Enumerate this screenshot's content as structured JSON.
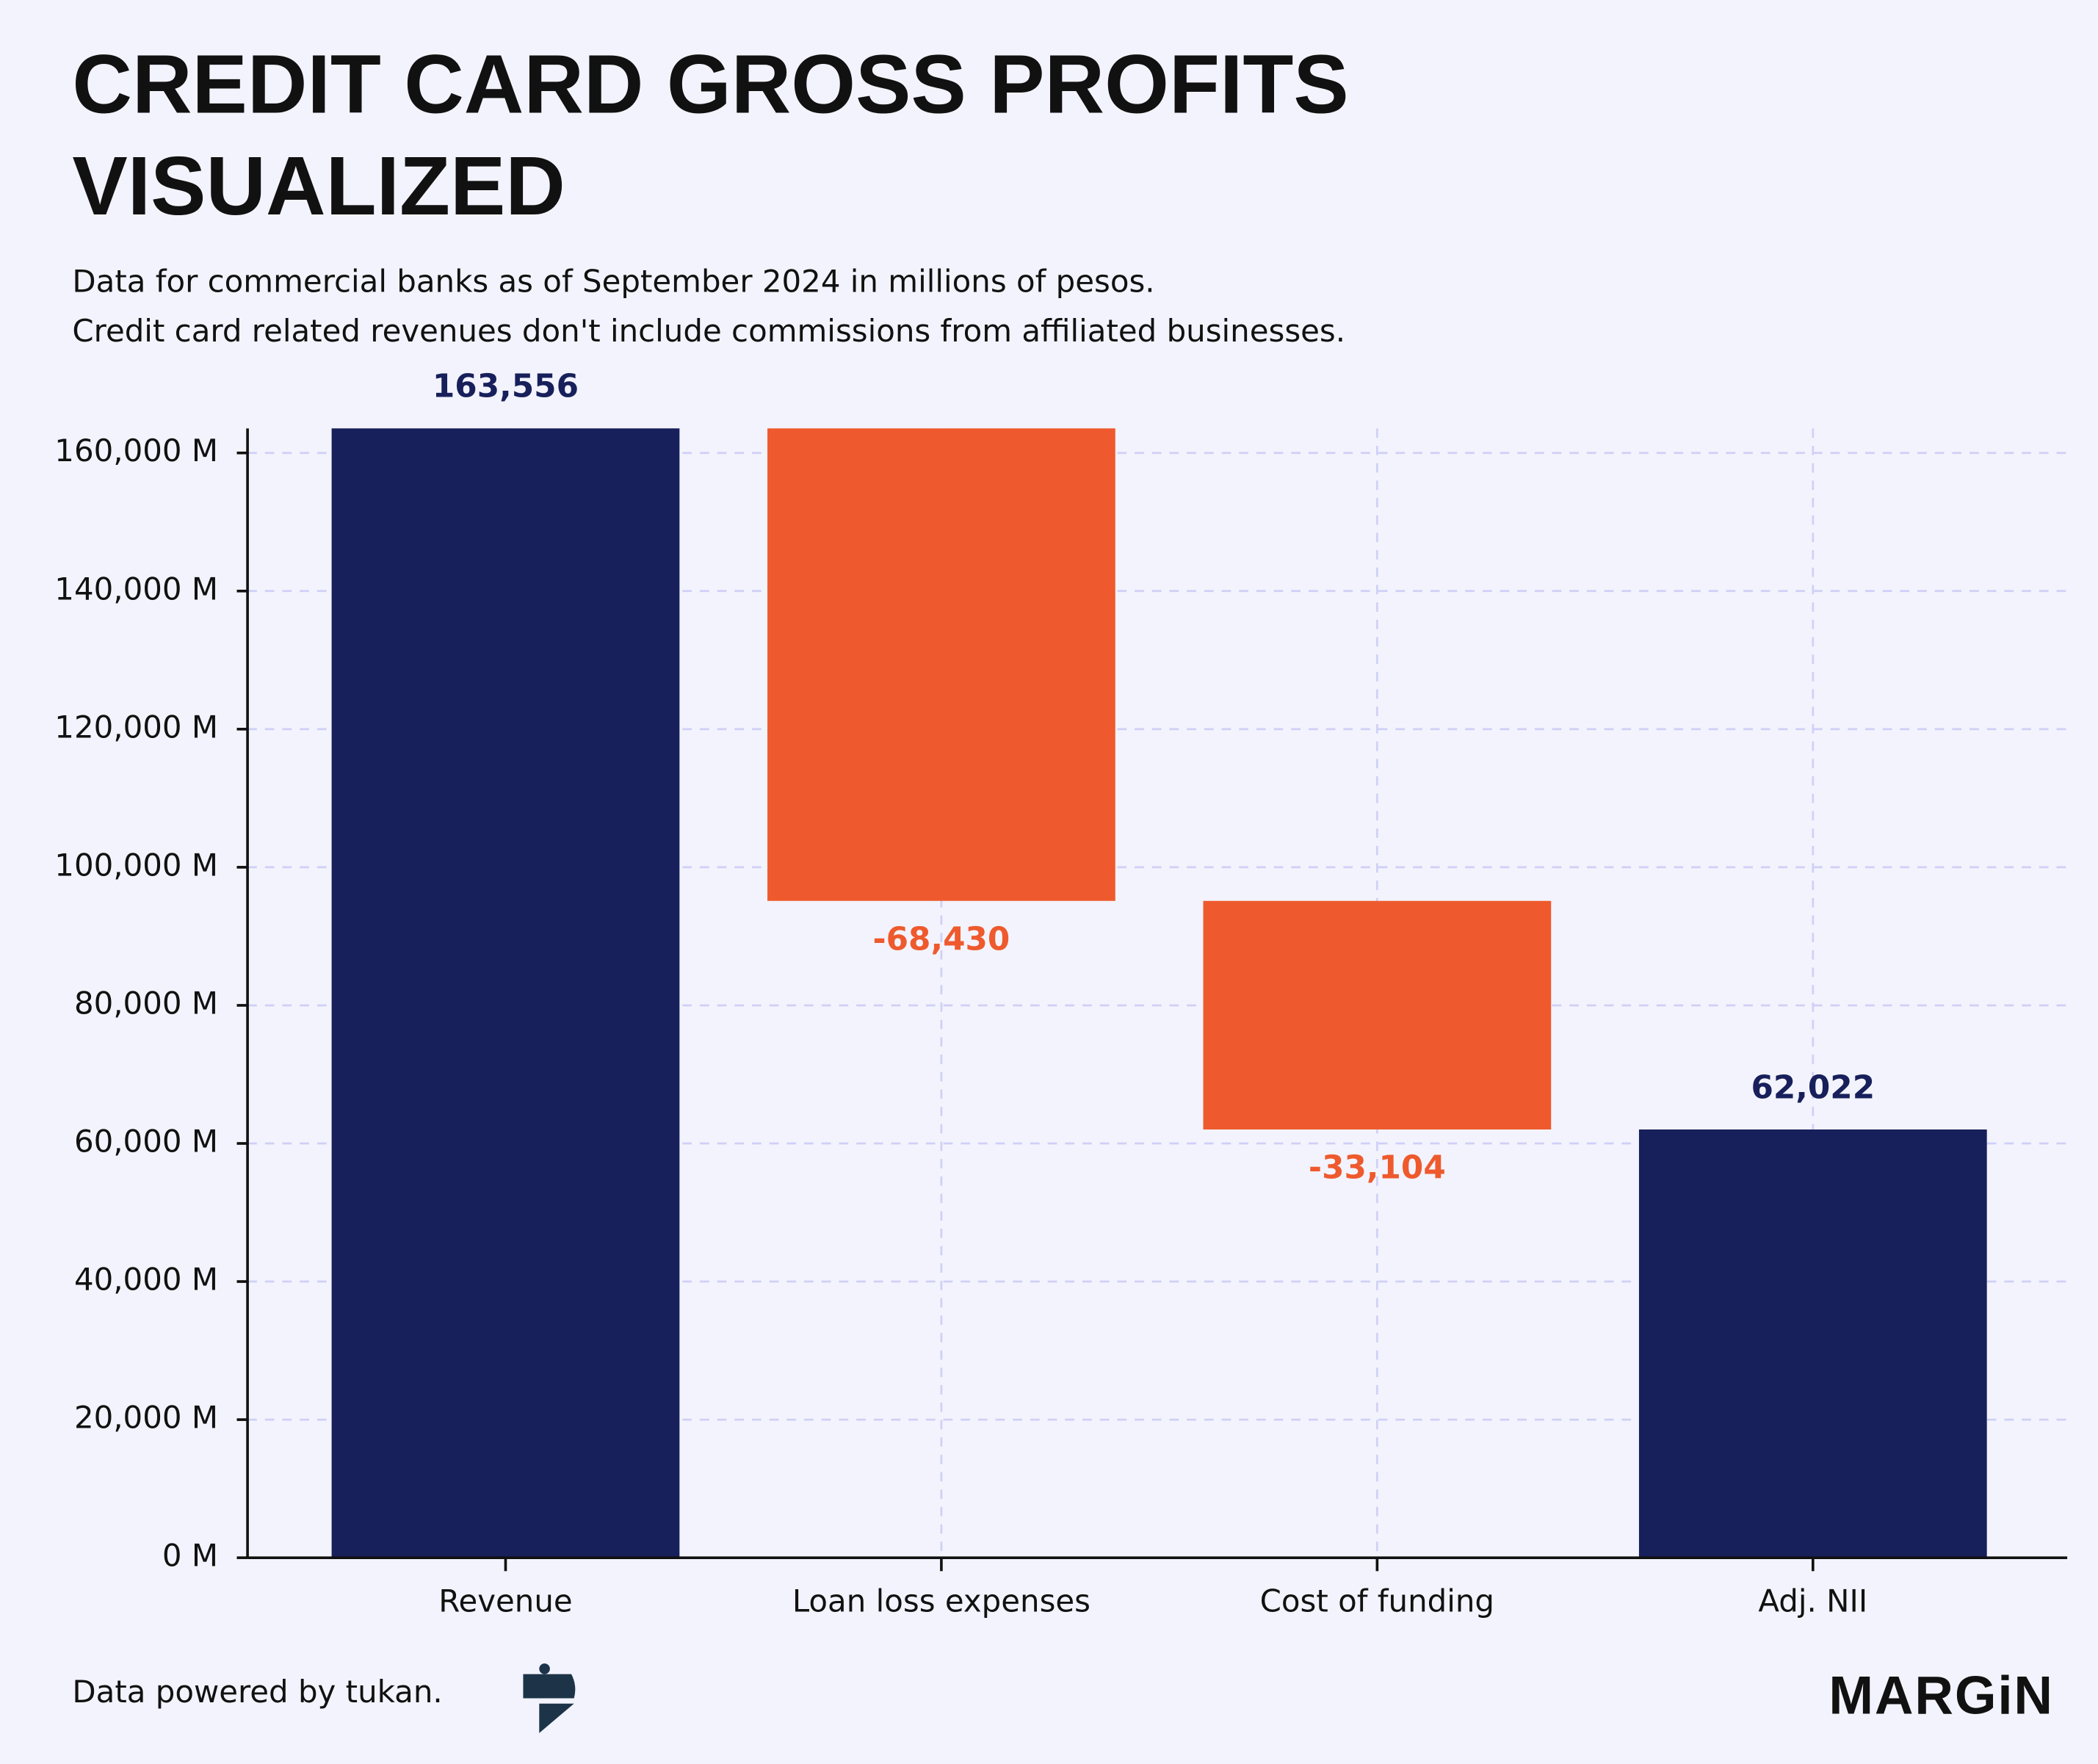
{
  "chart_data": {
    "type": "waterfall",
    "title": [
      "CREDIT CARD GROSS PROFITS",
      "VISUALIZED"
    ],
    "subtitle": [
      "Data for commercial banks as of September 2024 in millions of pesos.",
      "Credit card related revenues don't include commissions from affiliated businesses."
    ],
    "categories": [
      "Revenue",
      "Loan loss expenses",
      "Cost of funding",
      "Adj. NII"
    ],
    "values": [
      163556,
      -68430,
      -33104,
      62022
    ],
    "value_labels": [
      "163,556",
      "-68,430",
      "-33,104",
      "62,022"
    ],
    "measure": [
      "absolute",
      "relative",
      "relative",
      "total"
    ],
    "colors": [
      "#17205a",
      "#ee5a2d",
      "#ee5a2d",
      "#17205a"
    ],
    "ylim": [
      0,
      163556
    ],
    "yticks": [
      {
        "value": 0,
        "label": "0 M"
      },
      {
        "value": 20000,
        "label": "20,000 M"
      },
      {
        "value": 40000,
        "label": "40,000 M"
      },
      {
        "value": 60000,
        "label": "60,000 M"
      },
      {
        "value": 80000,
        "label": "80,000 M"
      },
      {
        "value": 100000,
        "label": "100,000 M"
      },
      {
        "value": 120000,
        "label": "120,000 M"
      },
      {
        "value": 140000,
        "label": "140,000 M"
      },
      {
        "value": 160000,
        "label": "160,000 M"
      }
    ],
    "grid": true
  },
  "source": "Data powered by tukan.",
  "brand": "MARGiN"
}
